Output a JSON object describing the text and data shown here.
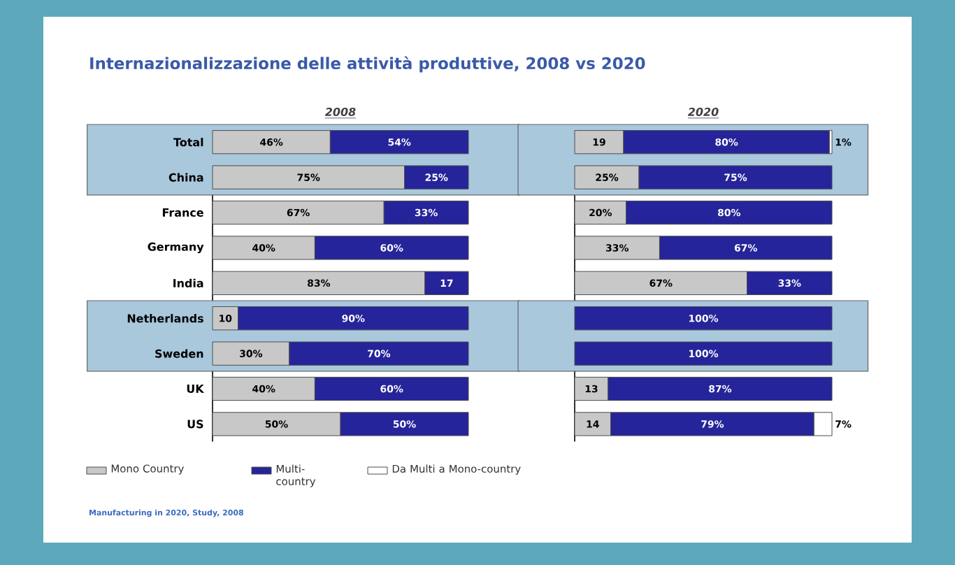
{
  "chart_data": [
    {
      "type": "bar",
      "orientation": "horizontal",
      "stacked": true,
      "title": "Internazionalizzazione delle attività produttive, 2008 vs 2020",
      "subtitle": "2008",
      "categories": [
        "Total",
        "China",
        "France",
        "Germany",
        "India",
        "Netherlands",
        "Sweden",
        "UK",
        "US"
      ],
      "xlim": [
        0,
        100
      ],
      "tick_labels": "y",
      "legend": "bottom left",
      "bands": [
        {
          "axis": "y",
          "from": "Total",
          "to": "China",
          "color": "#a9c8dc"
        },
        {
          "axis": "y",
          "from": "Netherlands",
          "to": "Sweden",
          "color": "#a9c8dc"
        }
      ],
      "series": [
        {
          "name": "Mono Country",
          "color": "#c8c8c8",
          "values": [
            46,
            75,
            67,
            40,
            83,
            10,
            30,
            40,
            50
          ],
          "value_labels": [
            "46%",
            "75%",
            "67%",
            "40%",
            "83%",
            "10",
            "30%",
            "40%",
            "50%"
          ]
        },
        {
          "name": "Multi-country",
          "color": "#26249a",
          "values": [
            54,
            25,
            33,
            60,
            17,
            90,
            70,
            60,
            50
          ],
          "value_labels": [
            "54%",
            "25%",
            "33%",
            "60%",
            "17",
            "90%",
            "70%",
            "60%",
            "50%"
          ]
        }
      ],
      "annotations": [
        "Manufacturing in 2020, Study, 2008"
      ]
    },
    {
      "type": "bar",
      "orientation": "horizontal",
      "stacked": true,
      "subtitle": "2020",
      "categories": [
        "Total",
        "China",
        "France",
        "Germany",
        "India",
        "Netherlands",
        "Sweden",
        "UK",
        "US"
      ],
      "xlim": [
        0,
        100
      ],
      "tick_labels": false,
      "legend": "bottom left",
      "bands": [
        {
          "axis": "y",
          "from": "Total",
          "to": "China",
          "color": "#a9c8dc"
        },
        {
          "axis": "y",
          "from": "Netherlands",
          "to": "Sweden",
          "color": "#a9c8dc"
        }
      ],
      "series": [
        {
          "color": "#c8c8c8",
          "values": [
            19,
            25,
            20,
            33,
            67,
            null,
            null,
            13,
            14
          ],
          "value_labels": [
            "19",
            "25%",
            "20%",
            "33%",
            "67%",
            null,
            null,
            "13",
            "14"
          ]
        },
        {
          "color": "#26249a",
          "values": [
            80,
            75,
            80,
            67,
            33,
            100,
            100,
            87,
            79
          ],
          "value_labels": [
            "80%",
            "75%",
            "80%",
            "67%",
            "33%",
            "100%",
            "100%",
            "87%",
            "79%"
          ]
        },
        {
          "name": "Da Multi a Mono-country",
          "color": "#ffffff",
          "values": [
            1,
            null,
            null,
            null,
            null,
            null,
            null,
            null,
            7
          ],
          "value_labels": [
            "1%",
            null,
            null,
            null,
            null,
            null,
            null,
            null,
            "7%"
          ]
        }
      ]
    }
  ]
}
